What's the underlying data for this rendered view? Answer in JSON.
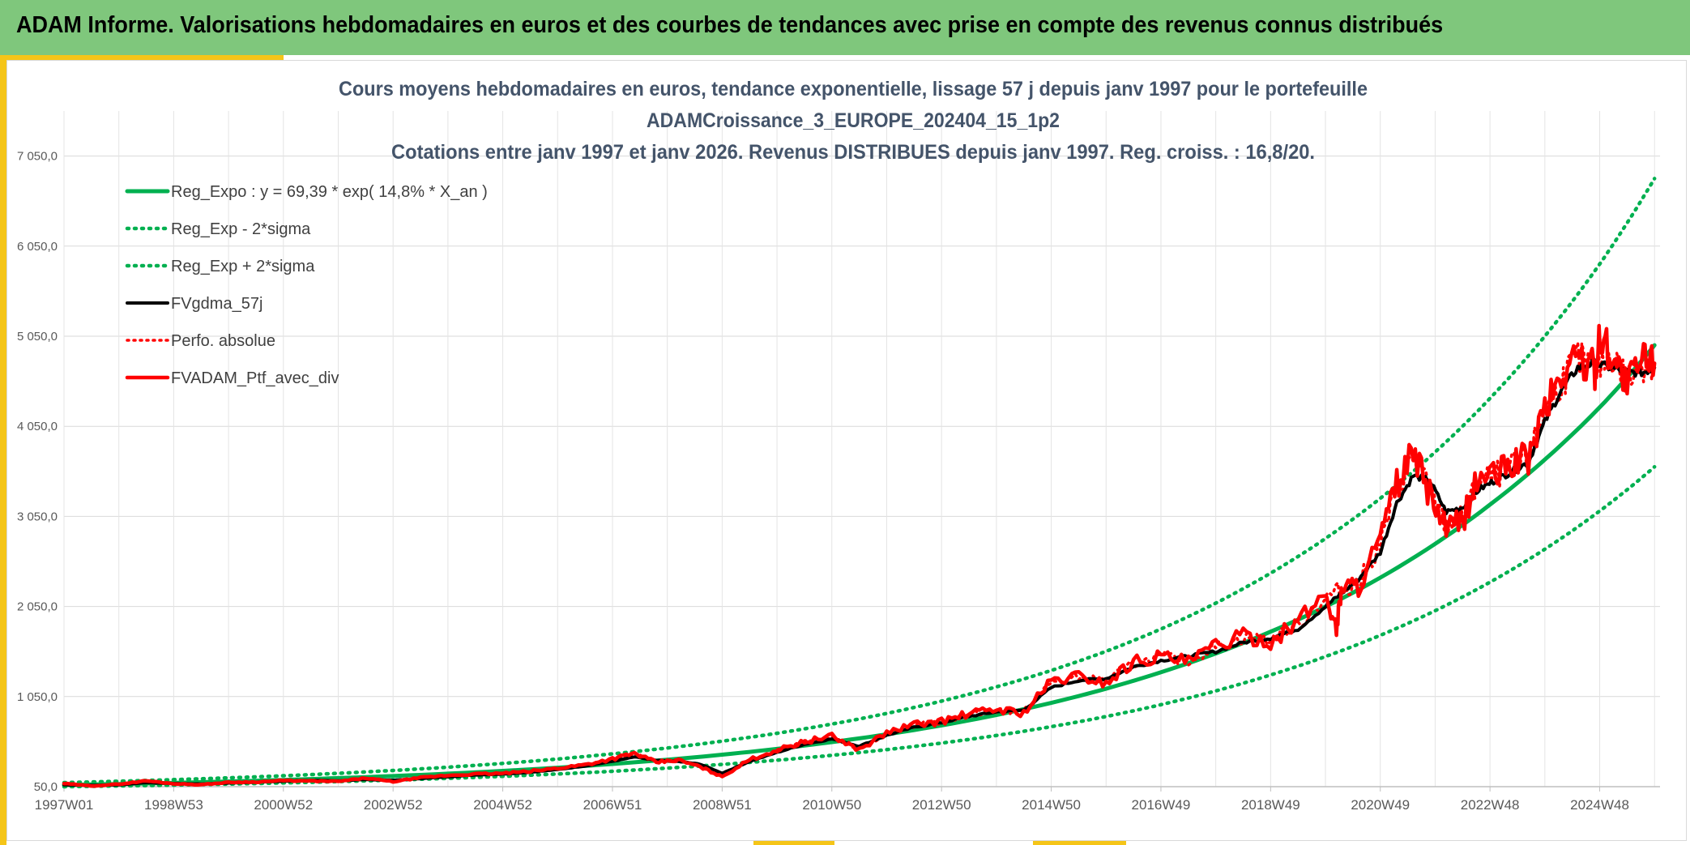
{
  "banner": {
    "title": "ADAM Informe. Valorisations hebdomadaires en euros et des courbes de tendances avec prise en compte des revenus connus distribués"
  },
  "colors": {
    "green": "#00b050",
    "red": "#ff0000",
    "black": "#000000",
    "banner": "#7fc77c",
    "accent": "#f5c518",
    "title": "#44546a"
  },
  "chart_data": {
    "type": "line",
    "title": [
      "Cours moyens hebdomadaires en euros, tendance exponentielle, lissage 57 j depuis janv 1997 pour le portefeuille",
      "ADAMCroissance_3_EUROPE_202404_15_1p2",
      "Cotations entre janv 1997 et janv 2026. Revenus DISTRIBUES depuis janv 1997. Reg. croiss. : 16,8/20."
    ],
    "xlabel": "",
    "ylabel": "",
    "ylim": [
      50,
      7550
    ],
    "xlim": [
      1997.0,
      2026.1
    ],
    "yticks": [
      50,
      1050,
      2050,
      3050,
      4050,
      5050,
      6050,
      7050
    ],
    "ytick_labels": [
      "50,0",
      "1 050,0",
      "2 050,0",
      "3 050,0",
      "4 050,0",
      "5 050,0",
      "6 050,0",
      "7 050,0"
    ],
    "xtick_labels": [
      "1997W01",
      "1998W53",
      "2000W52",
      "2002W52",
      "2004W52",
      "2006W51",
      "2008W51",
      "2010W50",
      "2012W50",
      "2014W50",
      "2016W49",
      "2018W49",
      "2020W49",
      "2022W48",
      "2024W48"
    ],
    "xtick_years": [
      1997.0,
      1999.0,
      2001.0,
      2003.0,
      2005.0,
      2007.0,
      2009.0,
      2011.0,
      2013.0,
      2015.0,
      2017.0,
      2019.0,
      2021.0,
      2023.0,
      2025.0
    ],
    "legend_position": "top-left",
    "series": [
      {
        "name": "Reg_Expo : y = 69,39 * exp( 14,8% *  X_an )",
        "style": "solid-green",
        "x": [
          1997,
          1999,
          2001,
          2003,
          2005,
          2007,
          2009,
          2011,
          2013,
          2015,
          2017,
          2019,
          2021,
          2023,
          2025,
          2026
        ],
        "y": [
          69,
          93,
          125,
          168,
          225,
          302,
          405,
          545,
          730,
          980,
          1320,
          1770,
          2370,
          3180,
          4260,
          4950
        ]
      },
      {
        "name": "Reg_Exp - 2*sigma",
        "style": "dotted-green",
        "x": [
          1997,
          1999,
          2001,
          2003,
          2005,
          2007,
          2009,
          2011,
          2013,
          2015,
          2017,
          2019,
          2021,
          2023,
          2025,
          2026
        ],
        "y": [
          50,
          68,
          92,
          123,
          165,
          221,
          297,
          398,
          534,
          716,
          960,
          1290,
          1730,
          2320,
          3110,
          3600
        ]
      },
      {
        "name": "Reg_Exp + 2*sigma",
        "style": "dotted-green",
        "x": [
          1997,
          1999,
          2001,
          2003,
          2005,
          2007,
          2009,
          2011,
          2013,
          2015,
          2017,
          2019,
          2021,
          2023,
          2025,
          2026
        ],
        "y": [
          95,
          128,
          171,
          230,
          308,
          414,
          555,
          745,
          1000,
          1340,
          1800,
          2420,
          3250,
          4360,
          5850,
          6800
        ]
      },
      {
        "name": "FVgdma_57j",
        "style": "solid-black",
        "x": [
          1997.0,
          1997.5,
          1998.0,
          1998.5,
          1999.0,
          1999.5,
          2000.0,
          2000.5,
          2001.0,
          2001.5,
          2002.0,
          2002.5,
          2003.0,
          2003.5,
          2004.0,
          2004.5,
          2005.0,
          2005.5,
          2006.0,
          2006.5,
          2007.0,
          2007.4,
          2007.8,
          2008.2,
          2008.6,
          2009.0,
          2009.5,
          2010.0,
          2010.5,
          2011.0,
          2011.5,
          2012.0,
          2012.5,
          2013.0,
          2013.5,
          2014.0,
          2014.5,
          2015.0,
          2015.5,
          2016.0,
          2016.5,
          2017.0,
          2017.5,
          2018.0,
          2018.5,
          2019.0,
          2019.5,
          2020.0,
          2020.3,
          2020.6,
          2021.0,
          2021.3,
          2021.6,
          2021.9,
          2022.2,
          2022.5,
          2022.8,
          2023.1,
          2023.4,
          2023.7,
          2024.0,
          2024.3,
          2024.6,
          2024.9,
          2025.2,
          2025.5,
          2025.8,
          2026.0
        ],
        "y": [
          70,
          65,
          70,
          95,
          85,
          80,
          90,
          100,
          110,
          120,
          115,
          130,
          120,
          140,
          160,
          180,
          190,
          210,
          240,
          280,
          330,
          380,
          340,
          330,
          300,
          200,
          330,
          430,
          520,
          580,
          500,
          620,
          710,
          760,
          830,
          880,
          900,
          1150,
          1230,
          1250,
          1380,
          1450,
          1500,
          1550,
          1650,
          1700,
          1800,
          2050,
          2200,
          2350,
          2650,
          3200,
          3500,
          3450,
          3100,
          3150,
          3350,
          3450,
          3550,
          3650,
          4100,
          4450,
          4700,
          4750,
          4700,
          4650,
          4650,
          4700
        ]
      },
      {
        "name": "Perfo. absolue",
        "style": "dotted-red",
        "x": [
          1997.0,
          1997.5,
          1998.0,
          1998.5,
          1999.0,
          1999.5,
          2000.0,
          2000.5,
          2001.0,
          2001.5,
          2002.0,
          2002.5,
          2003.0,
          2003.5,
          2004.0,
          2004.5,
          2005.0,
          2005.5,
          2006.0,
          2006.5,
          2007.0,
          2007.4,
          2007.8,
          2008.2,
          2008.6,
          2009.0,
          2009.5,
          2010.0,
          2010.5,
          2011.0,
          2011.5,
          2012.0,
          2012.5,
          2013.0,
          2013.5,
          2014.0,
          2014.5,
          2015.0,
          2015.5,
          2016.0,
          2016.5,
          2017.0,
          2017.5,
          2018.0,
          2018.5,
          2019.0,
          2019.5,
          2020.0,
          2020.3,
          2020.6,
          2021.0,
          2021.3,
          2021.6,
          2021.9,
          2022.2,
          2022.5,
          2022.8,
          2023.1,
          2023.4,
          2023.7,
          2024.0,
          2024.3,
          2024.6,
          2024.9,
          2025.2,
          2025.5,
          2025.8,
          2026.0
        ],
        "y": [
          80,
          60,
          75,
          110,
          85,
          75,
          95,
          100,
          115,
          115,
          110,
          140,
          110,
          145,
          170,
          185,
          195,
          215,
          250,
          290,
          350,
          410,
          330,
          340,
          280,
          170,
          340,
          450,
          540,
          600,
          470,
          640,
          730,
          770,
          850,
          900,
          880,
          1200,
          1260,
          1220,
          1420,
          1480,
          1450,
          1600,
          1700,
          1680,
          1850,
          2150,
          2250,
          2300,
          2750,
          3350,
          3700,
          3350,
          2950,
          3050,
          3450,
          3500,
          3600,
          3700,
          4200,
          4550,
          4800,
          4680,
          4850,
          4550,
          4750,
          4750
        ]
      },
      {
        "name": "FVADAM_Ptf_avec_div",
        "style": "solid-red",
        "x": [
          1997.0,
          1997.5,
          1998.0,
          1998.5,
          1999.0,
          1999.5,
          2000.0,
          2000.5,
          2001.0,
          2001.5,
          2002.0,
          2002.5,
          2003.0,
          2003.5,
          2004.0,
          2004.5,
          2005.0,
          2005.5,
          2006.0,
          2006.5,
          2007.0,
          2007.4,
          2007.8,
          2008.2,
          2008.6,
          2009.0,
          2009.5,
          2010.0,
          2010.5,
          2011.0,
          2011.5,
          2012.0,
          2012.5,
          2013.0,
          2013.5,
          2014.0,
          2014.5,
          2015.0,
          2015.5,
          2016.0,
          2016.5,
          2017.0,
          2017.5,
          2018.0,
          2018.5,
          2019.0,
          2019.5,
          2020.0,
          2020.2,
          2020.3,
          2020.6,
          2021.0,
          2021.3,
          2021.6,
          2021.9,
          2022.2,
          2022.5,
          2022.8,
          2023.1,
          2023.4,
          2023.7,
          2024.0,
          2024.3,
          2024.6,
          2024.9,
          2025.0,
          2025.2,
          2025.5,
          2025.8,
          2026.0
        ],
        "y": [
          85,
          58,
          78,
          115,
          83,
          72,
          98,
          102,
          118,
          112,
          108,
          145,
          105,
          150,
          175,
          190,
          198,
          220,
          255,
          295,
          360,
          420,
          320,
          345,
          270,
          160,
          350,
          455,
          550,
          610,
          460,
          650,
          740,
          775,
          860,
          910,
          870,
          1220,
          1280,
          1200,
          1440,
          1500,
          1430,
          1620,
          1720,
          1660,
          1880,
          2200,
          1800,
          2280,
          2280,
          2800,
          3400,
          3750,
          3300,
          2900,
          3000,
          3500,
          3500,
          3650,
          3700,
          4250,
          4600,
          4850,
          4650,
          5050,
          4900,
          4500,
          4800,
          4750
        ]
      }
    ]
  }
}
